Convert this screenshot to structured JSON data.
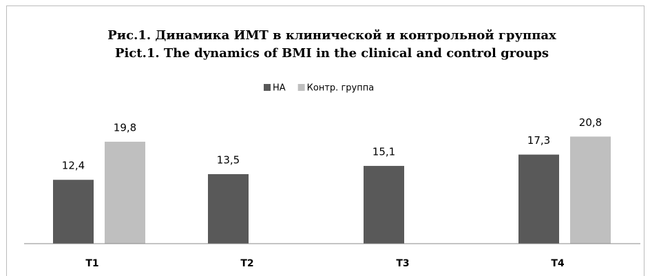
{
  "chart_data": {
    "type": "bar",
    "title": "Рис.1. Динамика ИМТ в клинической и контрольной группах",
    "subtitle": "Pict.1. The dynamics of BMI in the clinical and control groups",
    "categories": [
      "T1",
      "T2",
      "T3",
      "T4"
    ],
    "series": [
      {
        "name": "НА",
        "color": "#595959",
        "values": [
          12.4,
          13.5,
          15.1,
          17.3
        ],
        "value_labels": [
          "12,4",
          "13,5",
          "15,1",
          "17,3"
        ]
      },
      {
        "name": "Контр. группа",
        "color": "#bfbfbf",
        "values": [
          19.8,
          null,
          null,
          20.8
        ],
        "value_labels": [
          "19,8",
          null,
          null,
          "20,8"
        ]
      }
    ],
    "ylim": [
      0,
      25
    ],
    "legend": "top"
  }
}
